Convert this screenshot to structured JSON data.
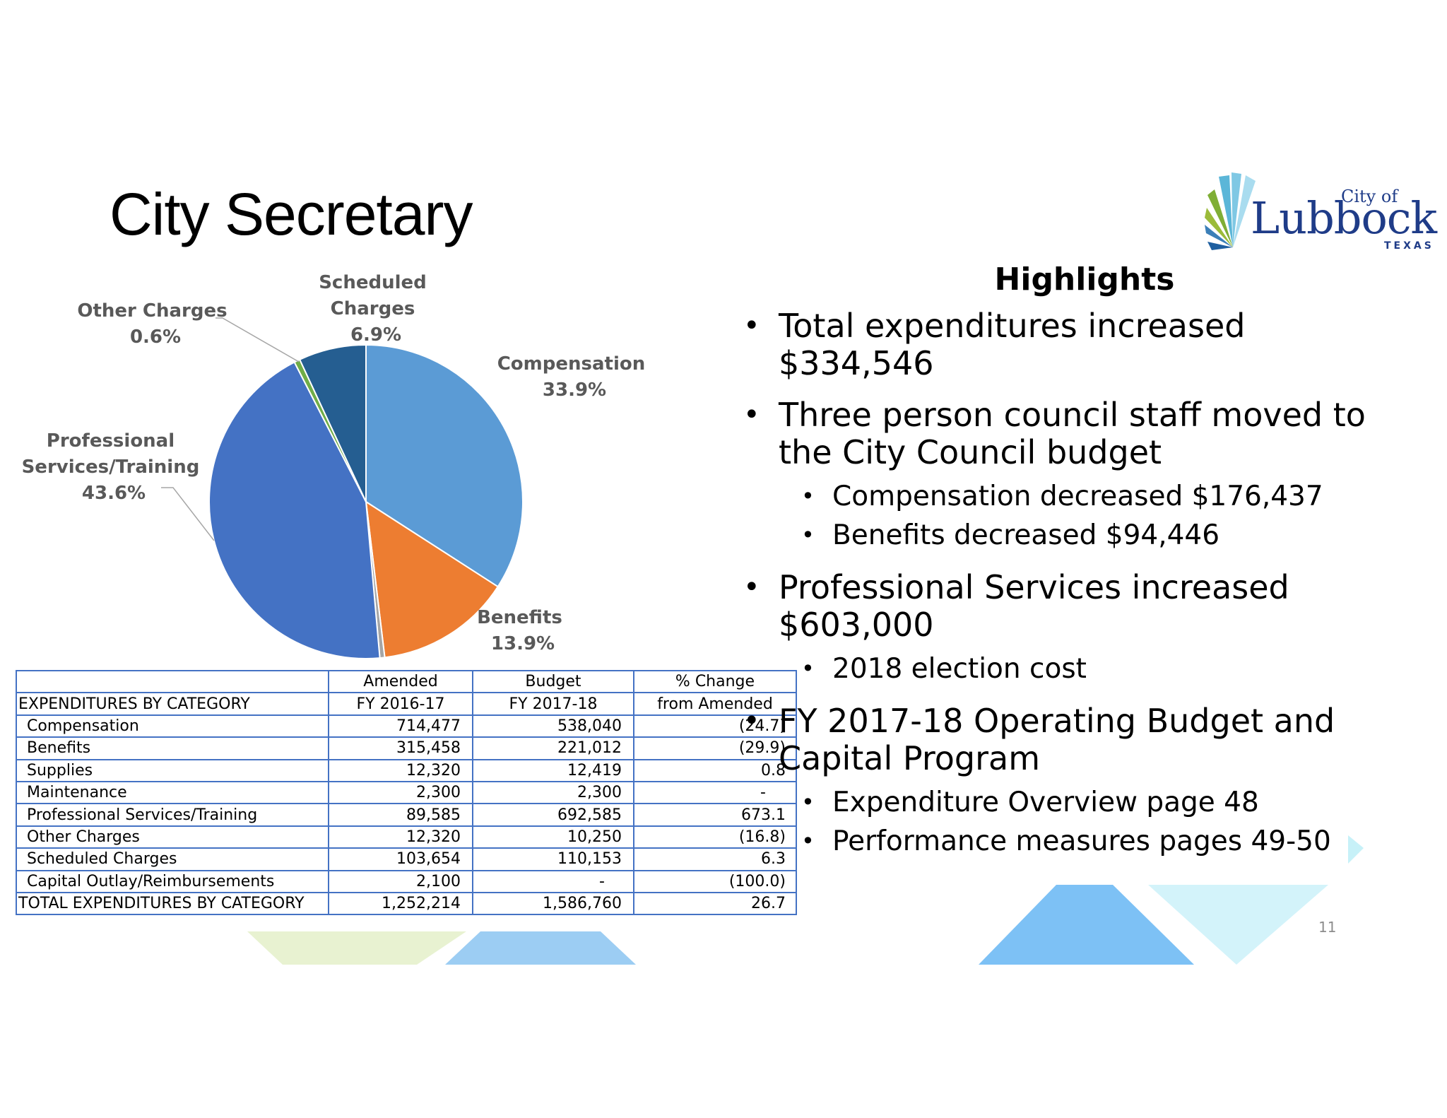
{
  "slide": {
    "title": "City Secretary",
    "page_number": "11"
  },
  "logo": {
    "city_of": "City of",
    "name": "Lubbock",
    "state": "TEXAS"
  },
  "chart_data": {
    "type": "pie",
    "title": "",
    "slices": [
      {
        "label": "Compensation",
        "value": 33.9,
        "display": "33.9%",
        "color": "#5b9bd5"
      },
      {
        "label": "Benefits",
        "value": 13.9,
        "display": "13.9%",
        "color": "#ed7d31"
      },
      {
        "label": "Capital Outlay/Reimbursements",
        "value": 0.0,
        "display": "",
        "color": "#a5a5a5"
      },
      {
        "label": "Professional Services/Training",
        "value": 43.6,
        "display": "43.6%",
        "color": "#4472c4"
      },
      {
        "label": "Other Charges",
        "value": 0.6,
        "display": "0.6%",
        "color": "#70ad47"
      },
      {
        "label": "Scheduled Charges",
        "value": 6.9,
        "display": "6.9%",
        "color": "#255e91"
      }
    ],
    "label_lines": {
      "compensation": [
        "Compensation",
        "33.9%"
      ],
      "benefits": [
        "Benefits",
        "13.9%"
      ],
      "professional": [
        "Professional",
        "Services/Training",
        "43.6%"
      ],
      "other": [
        "Other Charges",
        "0.6%"
      ],
      "scheduled": [
        "Scheduled",
        "Charges",
        "6.9%"
      ]
    }
  },
  "table": {
    "header1": [
      "",
      "Amended",
      "Budget",
      "% Change"
    ],
    "header2": [
      "EXPENDITURES BY CATEGORY",
      "FY 2016-17",
      "FY 2017-18",
      "from Amended"
    ],
    "rows": [
      [
        "Compensation",
        "714,477",
        "538,040",
        "(24.7)"
      ],
      [
        "Benefits",
        "315,458",
        "221,012",
        "(29.9)"
      ],
      [
        "Supplies",
        "12,320",
        "12,419",
        "0.8"
      ],
      [
        "Maintenance",
        "2,300",
        "2,300",
        "-"
      ],
      [
        "Professional Services/Training",
        "89,585",
        "692,585",
        "673.1"
      ],
      [
        "Other Charges",
        "12,320",
        "10,250",
        "(16.8)"
      ],
      [
        "Scheduled Charges",
        "103,654",
        "110,153",
        "6.3"
      ],
      [
        "Capital Outlay/Reimbursements",
        "2,100",
        "-",
        "(100.0)"
      ]
    ],
    "total": [
      "TOTAL EXPENDITURES BY CATEGORY",
      "1,252,214",
      "1,586,760",
      "26.7"
    ]
  },
  "highlights": {
    "title": "Highlights",
    "items": [
      {
        "text": "Total expenditures increased $334,546",
        "sub": []
      },
      {
        "text": "Three person council staff moved to the City Council budget",
        "sub": [
          "Compensation decreased $176,437",
          "Benefits decreased $94,446"
        ]
      },
      {
        "text": "Professional Services increased $603,000",
        "sub": [
          "2018 election cost"
        ]
      },
      {
        "text": "FY 2017-18 Operating Budget and Capital Program",
        "sub": [
          "Expenditure Overview page 48",
          "Performance measures pages 49-50"
        ]
      }
    ]
  },
  "colors": {
    "table_border": "#4472c4",
    "logo_blue": "#1f3c88"
  }
}
